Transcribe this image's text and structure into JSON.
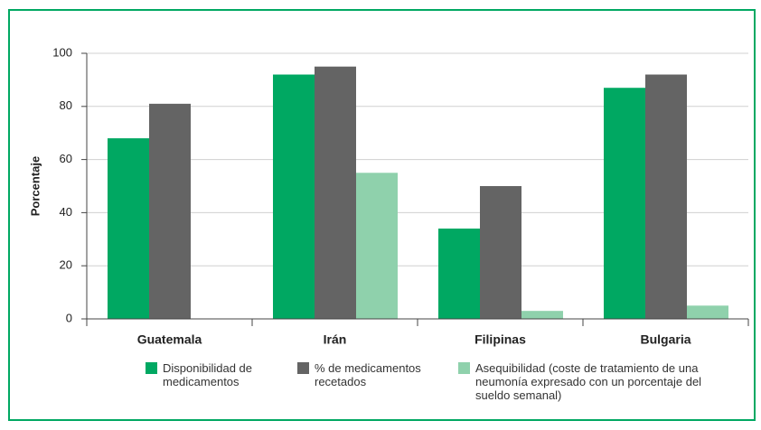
{
  "chart_data": {
    "type": "bar",
    "ylabel": "Porcentaje",
    "categories": [
      "Guatemala",
      "Irán",
      "Filipinas",
      "Bulgaria"
    ],
    "series": [
      {
        "name": "Disponibilidad de medicamentos",
        "color": "#00a862",
        "values": [
          68,
          92,
          34,
          87
        ]
      },
      {
        "name": "% de medicamentos recetados",
        "color": "#646464",
        "values": [
          81,
          95,
          50,
          92
        ]
      },
      {
        "name": "Asequibilidad (coste de tratamiento de una neumonía expresado con un porcentaje del sueldo semanal)",
        "color": "#8fd1ac",
        "values": [
          null,
          55,
          3,
          5
        ]
      }
    ],
    "ylim": [
      0,
      100
    ],
    "yticks": [
      0,
      20,
      40,
      60,
      80,
      100
    ],
    "grid": true
  }
}
